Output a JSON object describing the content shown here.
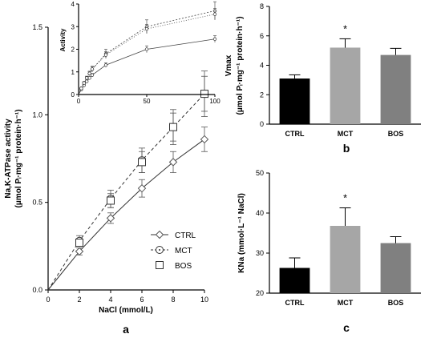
{
  "chart_data": [
    {
      "panel": "a",
      "type": "line",
      "xlabel": "NaCl (mmol/L)",
      "ylabel_line1": "Na,K-ATPase activity",
      "ylabel_line2": "(μmol Pᵢ·mg⁻¹ protein·h⁻¹)",
      "xlim": [
        0,
        10
      ],
      "ylim": [
        0,
        1.5
      ],
      "x_ticks": [
        "0",
        "2",
        "4",
        "6",
        "8",
        "10"
      ],
      "y_ticks": [
        "0.0",
        "0.5",
        "1.0",
        "1.5"
      ],
      "x": [
        2,
        4,
        6,
        8,
        10
      ],
      "legend_position": "bottom-right",
      "series": [
        {
          "name": "CTRL",
          "marker": "diamond",
          "line": "solid",
          "values": [
            0.22,
            0.41,
            0.58,
            0.73,
            0.86
          ],
          "errors": [
            0.02,
            0.03,
            0.05,
            0.06,
            0.07
          ]
        },
        {
          "name": "MCT",
          "marker": "circle-dot",
          "line": "dashed",
          "values": [
            0.28,
            0.52,
            0.74,
            0.93,
            1.12
          ],
          "errors": [
            0.03,
            0.05,
            0.07,
            0.1,
            0.13
          ]
        },
        {
          "name": "BOS",
          "marker": "square",
          "line": "none",
          "values": [
            0.27,
            0.51,
            0.73,
            0.93,
            1.12
          ],
          "errors": [
            0.02,
            0.04,
            0.06,
            0.08,
            0.1
          ]
        }
      ],
      "inset": {
        "ylabel": "Activity",
        "xlim": [
          0,
          100
        ],
        "ylim": [
          0,
          4
        ],
        "x_ticks": [
          "0",
          "50",
          "100"
        ],
        "y_ticks": [
          "0",
          "1",
          "2",
          "3",
          "4"
        ],
        "x": [
          2,
          4,
          6,
          8,
          10,
          20,
          50,
          100
        ],
        "series": [
          {
            "name": "CTRL",
            "values": [
              0.22,
              0.41,
              0.58,
              0.73,
              0.86,
              1.3,
              2.0,
              2.45
            ],
            "errors": [
              0.02,
              0.03,
              0.05,
              0.06,
              0.07,
              0.1,
              0.15,
              0.15
            ]
          },
          {
            "name": "MCT",
            "values": [
              0.28,
              0.52,
              0.74,
              0.93,
              1.12,
              1.8,
              3.0,
              3.7
            ],
            "errors": [
              0.03,
              0.05,
              0.07,
              0.1,
              0.13,
              0.2,
              0.3,
              0.4
            ]
          },
          {
            "name": "BOS",
            "values": [
              0.27,
              0.51,
              0.73,
              0.93,
              1.12,
              1.75,
              2.9,
              3.55
            ],
            "errors": [
              0.02,
              0.04,
              0.06,
              0.08,
              0.1,
              0.15,
              0.2,
              0.25
            ]
          }
        ]
      }
    },
    {
      "panel": "b",
      "type": "bar",
      "ylabel_line1": "Vmax",
      "ylabel_line2": "(μmol Pᵢ·mg⁻¹ protein·h⁻¹)",
      "categories": [
        "CTRL",
        "MCT",
        "BOS"
      ],
      "values": [
        3.1,
        5.2,
        4.7
      ],
      "errors": [
        0.25,
        0.6,
        0.45
      ],
      "colors": [
        "#000000",
        "#a6a6a6",
        "#808080"
      ],
      "significance": [
        "",
        "*",
        ""
      ],
      "ylim": [
        0,
        8
      ],
      "y_ticks": [
        "0",
        "2",
        "4",
        "6",
        "8"
      ]
    },
    {
      "panel": "c",
      "type": "bar",
      "ylabel": "KNa (mmol·L⁻¹ NaCl)",
      "categories": [
        "CTRL",
        "MCT",
        "BOS"
      ],
      "values": [
        26.3,
        36.8,
        32.5
      ],
      "errors": [
        2.5,
        4.5,
        1.6
      ],
      "colors": [
        "#000000",
        "#a6a6a6",
        "#808080"
      ],
      "significance": [
        "",
        "*",
        ""
      ],
      "ylim": [
        20,
        50
      ],
      "y_ticks": [
        "20",
        "30",
        "40",
        "50"
      ]
    }
  ],
  "panel_labels": {
    "a": "a",
    "b": "b",
    "c": "c"
  }
}
